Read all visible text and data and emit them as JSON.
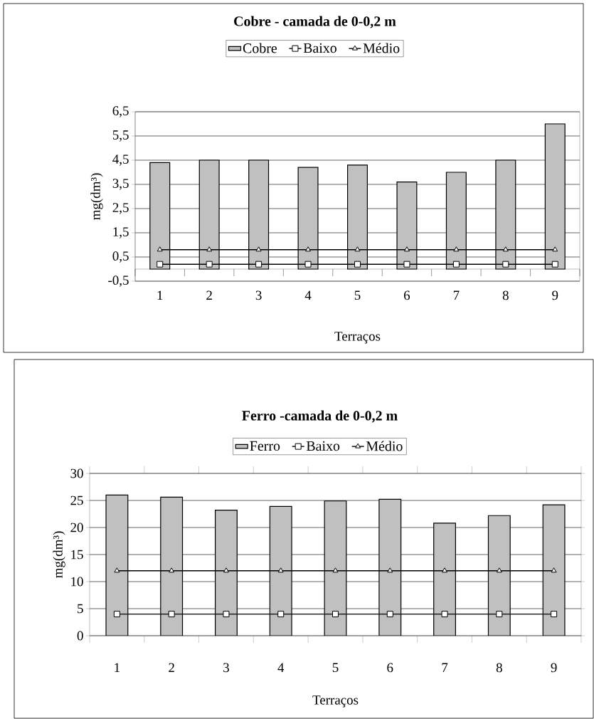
{
  "chart_data": [
    {
      "type": "bar",
      "title": "Cobre - camada de 0-0,2 m",
      "xlabel": "Terraços",
      "ylabel": "mg(dm³)",
      "categories": [
        "1",
        "2",
        "3",
        "4",
        "5",
        "6",
        "7",
        "8",
        "9"
      ],
      "series": [
        {
          "name": "Cobre",
          "type": "bar",
          "color": "#c0c0c0",
          "values": [
            4.4,
            4.5,
            4.5,
            4.2,
            4.3,
            3.6,
            4.0,
            4.5,
            6.0
          ]
        },
        {
          "name": "Baixo",
          "type": "line",
          "marker": "square",
          "color": "#000000",
          "values": [
            0.2,
            0.2,
            0.2,
            0.2,
            0.2,
            0.2,
            0.2,
            0.2,
            0.2
          ]
        },
        {
          "name": "Médio",
          "type": "line",
          "marker": "triangle",
          "color": "#000000",
          "values": [
            0.8,
            0.8,
            0.8,
            0.8,
            0.8,
            0.8,
            0.8,
            0.8,
            0.8
          ]
        }
      ],
      "ylim": [
        -0.5,
        6.5
      ],
      "yticks": [
        {
          "value": -0.5,
          "label": "-0,5"
        },
        {
          "value": 0.5,
          "label": "0,5"
        },
        {
          "value": 1.5,
          "label": "1,5"
        },
        {
          "value": 2.5,
          "label": "2,5"
        },
        {
          "value": 3.5,
          "label": "3,5"
        },
        {
          "value": 4.5,
          "label": "4,5"
        },
        {
          "value": 5.5,
          "label": "5,5"
        },
        {
          "value": 6.5,
          "label": "6,5"
        }
      ],
      "grid": "y",
      "legend": "top"
    },
    {
      "type": "bar",
      "title": "Ferro -camada de 0-0,2 m",
      "xlabel": "Terraços",
      "ylabel": "mg(dm³)",
      "categories": [
        "1",
        "2",
        "3",
        "4",
        "5",
        "6",
        "7",
        "8",
        "9"
      ],
      "series": [
        {
          "name": "Ferro",
          "type": "bar",
          "color": "#c0c0c0",
          "values": [
            26,
            25.6,
            23.2,
            23.9,
            24.9,
            25.2,
            20.8,
            22.2,
            24.2
          ]
        },
        {
          "name": "Baixo",
          "type": "line",
          "marker": "square",
          "color": "#000000",
          "values": [
            4,
            4,
            4,
            4,
            4,
            4,
            4,
            4,
            4
          ]
        },
        {
          "name": "Médio",
          "type": "line",
          "marker": "triangle",
          "color": "#000000",
          "values": [
            12,
            12,
            12,
            12,
            12,
            12,
            12,
            12,
            12
          ]
        }
      ],
      "ylim": [
        0,
        30
      ],
      "yticks": [
        0,
        5,
        10,
        15,
        20,
        25,
        30
      ],
      "grid": "y",
      "legend": "top"
    }
  ]
}
